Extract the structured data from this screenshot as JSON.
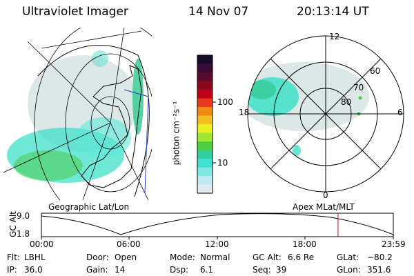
{
  "header": {
    "title": "Ultraviolet Imager",
    "date": "14 Nov 07",
    "time": "20:13:14 UT"
  },
  "colorbar": {
    "unit_label": "photon cm⁻²s⁻¹",
    "ticks": [
      "100",
      "10"
    ],
    "colors": [
      "#1a0a2a",
      "#3a0a3a",
      "#5a0a2a",
      "#8a0a1a",
      "#c0001a",
      "#e83a1a",
      "#f08a10",
      "#f0c020",
      "#e8f020",
      "#a0e830",
      "#50d040",
      "#30d0a0",
      "#40e0d0",
      "#80e8e0",
      "#c0e8f0",
      "#e0e8f0"
    ]
  },
  "map_labels": {
    "left_caption": "Geographic Lat/Lon",
    "right_caption": "Apex MLat/MLT"
  },
  "polar": {
    "mlt_labels": [
      "12",
      "18",
      "6",
      "0"
    ],
    "lat_labels": [
      "60",
      "70",
      "80"
    ]
  },
  "altitude_plot": {
    "ylabel": "GC Alt",
    "yticks": [
      "9.0",
      "1.8"
    ],
    "xticks": [
      "00:00",
      "06:00",
      "12:00",
      "18:00",
      "23:59"
    ],
    "current_time_fraction": 0.843
  },
  "status": {
    "flt_label": "Flt:",
    "flt_value": "LBHL",
    "ip_label": "IP:",
    "ip_value": "36.0",
    "door_label": "Door:",
    "door_value": "Open",
    "gain_label": "Gain:",
    "gain_value": "14",
    "mode_label": "Mode:",
    "mode_value": "Normal",
    "dsp_label": "Dsp:",
    "dsp_value": "6.1",
    "gcalt_label": "GC Alt:",
    "gcalt_value": "6.6 Re",
    "seq_label": "Seq:",
    "seq_value": "39",
    "glat_label": "GLat:",
    "glat_value": "−80.2",
    "glon_label": "GLon:",
    "glon_value": "351.6"
  }
}
